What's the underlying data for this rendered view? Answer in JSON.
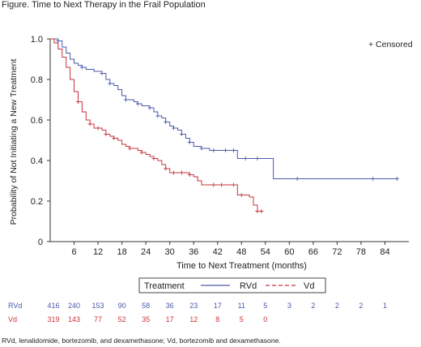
{
  "figure_title": "Figure. Time to Next Therapy in the Frail Population",
  "footnote": "RVd, lenalidomide, bortezomib, and dexamethasone; Vd, bortezomib and dexamethasone.",
  "chart_data": {
    "type": "line",
    "step": true,
    "xlabel": "Time to Next Treatment (months)",
    "ylabel": "Probability of Not Initiating a New Treatment",
    "xlim": [
      0,
      90
    ],
    "ylim": [
      0,
      1.0
    ],
    "x_ticks": [
      6,
      12,
      18,
      24,
      30,
      36,
      42,
      48,
      54,
      60,
      66,
      72,
      78,
      84
    ],
    "y_ticks": [
      "0",
      "0.2",
      "0.4",
      "0.6",
      "0.8",
      "1.0"
    ],
    "y_tick_values": [
      0,
      0.2,
      0.4,
      0.6,
      0.8,
      1.0
    ],
    "censored_note": "+ Censored",
    "legend": {
      "title": "Treatment",
      "position": "bottom"
    },
    "series": [
      {
        "name": "RVd",
        "color": "#4a5aa8",
        "x": [
          0,
          1,
          2,
          3,
          4,
          5,
          6,
          7,
          8,
          9,
          10,
          11,
          12,
          13,
          14,
          15,
          16,
          17,
          18,
          19,
          20,
          21,
          22,
          23,
          24,
          25,
          26,
          27,
          28,
          29,
          30,
          31,
          32,
          33,
          34,
          35,
          36,
          37,
          38,
          40,
          42,
          44,
          46,
          47,
          50,
          54,
          56,
          87
        ],
        "y": [
          1.0,
          1.0,
          0.99,
          0.96,
          0.93,
          0.9,
          0.88,
          0.87,
          0.86,
          0.85,
          0.85,
          0.84,
          0.84,
          0.83,
          0.8,
          0.78,
          0.77,
          0.75,
          0.72,
          0.7,
          0.7,
          0.69,
          0.68,
          0.67,
          0.67,
          0.66,
          0.64,
          0.62,
          0.61,
          0.59,
          0.57,
          0.56,
          0.55,
          0.53,
          0.51,
          0.49,
          0.47,
          0.47,
          0.46,
          0.45,
          0.45,
          0.45,
          0.45,
          0.41,
          0.41,
          0.41,
          0.31,
          0.31
        ],
        "censored_x": [
          2,
          8,
          13,
          15,
          19,
          22,
          25,
          27,
          29,
          31,
          33,
          35,
          38,
          41,
          44,
          46,
          49,
          52,
          62,
          81,
          87
        ]
      },
      {
        "name": "Vd",
        "color": "#c8333a",
        "x": [
          0,
          1,
          2,
          3,
          4,
          5,
          6,
          7,
          8,
          9,
          10,
          11,
          12,
          13,
          14,
          15,
          16,
          17,
          18,
          19,
          20,
          21,
          22,
          23,
          24,
          25,
          26,
          27,
          28,
          29,
          30,
          31,
          32,
          33,
          34,
          35,
          36,
          37,
          38,
          40,
          42,
          44,
          45,
          46,
          47,
          48,
          49,
          50,
          51,
          52,
          53
        ],
        "y": [
          1.0,
          0.98,
          0.95,
          0.91,
          0.86,
          0.8,
          0.74,
          0.69,
          0.64,
          0.6,
          0.58,
          0.56,
          0.56,
          0.55,
          0.53,
          0.52,
          0.51,
          0.5,
          0.48,
          0.47,
          0.46,
          0.46,
          0.45,
          0.44,
          0.43,
          0.42,
          0.41,
          0.4,
          0.38,
          0.36,
          0.34,
          0.34,
          0.34,
          0.34,
          0.34,
          0.33,
          0.32,
          0.3,
          0.28,
          0.28,
          0.28,
          0.28,
          0.28,
          0.28,
          0.23,
          0.23,
          0.23,
          0.22,
          0.18,
          0.15,
          0.15
        ],
        "censored_x": [
          7,
          10,
          12,
          14,
          16,
          20,
          23,
          26,
          29,
          31,
          33,
          35,
          41,
          43,
          46,
          48,
          52,
          53
        ]
      }
    ],
    "risk_table": {
      "times": [
        0,
        6,
        12,
        18,
        24,
        30,
        36,
        42,
        48,
        54,
        60,
        66,
        72,
        78,
        84
      ],
      "rows": [
        {
          "name": "RVd",
          "color": "#4a5aa8",
          "values": [
            "416",
            "240",
            "153",
            "90",
            "58",
            "36",
            "23",
            "17",
            "11",
            "5",
            "3",
            "2",
            "2",
            "2",
            "1"
          ]
        },
        {
          "name": "Vd",
          "color": "#c8333a",
          "values": [
            "319",
            "143",
            "77",
            "52",
            "35",
            "17",
            "12",
            "8",
            "5",
            "0"
          ]
        }
      ]
    }
  }
}
